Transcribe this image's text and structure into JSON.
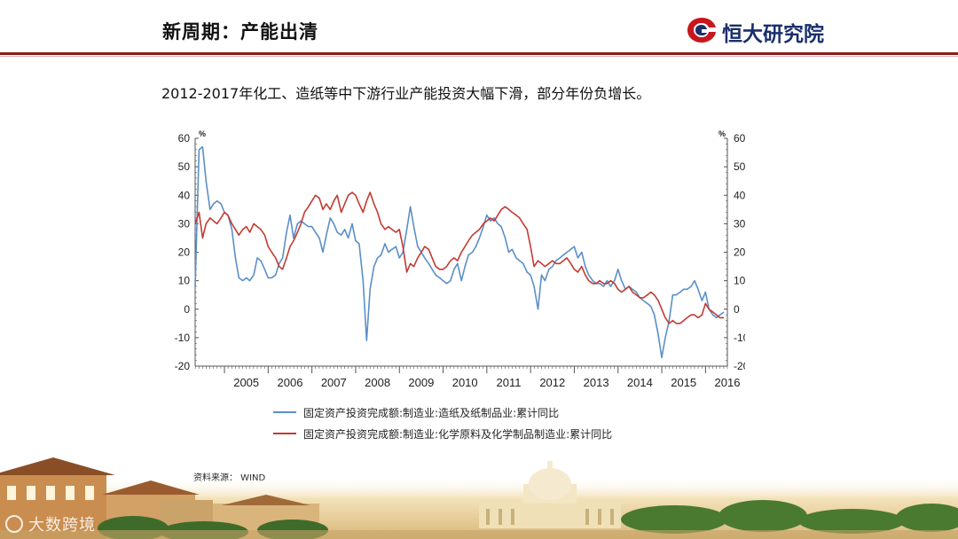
{
  "header": {
    "title": "新周期：产能出清",
    "brand": "恒大研究院"
  },
  "subtitle": "2012-2017年化工、造纸等中下游行业产能投资大幅下滑，部分年份负增长。",
  "source": "资料来源： WIND",
  "watermark": "大数跨境",
  "colors": {
    "series_blue": "#5b8fc7",
    "series_red": "#c23b32",
    "brand_red": "#8b1c1c",
    "brand_blue": "#1b2f6b"
  },
  "chart_data": {
    "type": "line",
    "y_unit_left": "%",
    "y_unit_right": "%",
    "ylim": [
      -20,
      60
    ],
    "yticks": [
      -20,
      -10,
      0,
      10,
      20,
      30,
      40,
      50,
      60
    ],
    "xlim": [
      2004.33,
      2016.5
    ],
    "xticks": [
      "2005",
      "2006",
      "2007",
      "2008",
      "2009",
      "2010",
      "2011",
      "2012",
      "2013",
      "2014",
      "2015",
      "2016"
    ],
    "grid": false,
    "legend_position": "bottom",
    "series": [
      {
        "name": "固定资产投资完成额:制造业:造纸及纸制品业:累计同比",
        "color": "#5b8fc7",
        "points": [
          [
            2004.33,
            8
          ],
          [
            2004.42,
            56
          ],
          [
            2004.5,
            57
          ],
          [
            2004.58,
            45
          ],
          [
            2004.67,
            35
          ],
          [
            2004.75,
            37
          ],
          [
            2004.83,
            38
          ],
          [
            2004.92,
            37
          ],
          [
            2005.0,
            34
          ],
          [
            2005.08,
            33
          ],
          [
            2005.17,
            28
          ],
          [
            2005.25,
            18
          ],
          [
            2005.33,
            11
          ],
          [
            2005.42,
            10
          ],
          [
            2005.5,
            11
          ],
          [
            2005.58,
            10
          ],
          [
            2005.67,
            12
          ],
          [
            2005.75,
            18
          ],
          [
            2005.83,
            17
          ],
          [
            2005.92,
            14
          ],
          [
            2006.0,
            11
          ],
          [
            2006.08,
            11
          ],
          [
            2006.17,
            12
          ],
          [
            2006.25,
            16
          ],
          [
            2006.33,
            18
          ],
          [
            2006.42,
            27
          ],
          [
            2006.5,
            33
          ],
          [
            2006.58,
            25
          ],
          [
            2006.67,
            30
          ],
          [
            2006.75,
            31
          ],
          [
            2006.83,
            30
          ],
          [
            2006.92,
            29
          ],
          [
            2007.0,
            29
          ],
          [
            2007.08,
            27
          ],
          [
            2007.17,
            25
          ],
          [
            2007.25,
            20
          ],
          [
            2007.33,
            26
          ],
          [
            2007.42,
            32
          ],
          [
            2007.5,
            30
          ],
          [
            2007.58,
            27
          ],
          [
            2007.67,
            26
          ],
          [
            2007.75,
            28
          ],
          [
            2007.83,
            25
          ],
          [
            2007.92,
            30
          ],
          [
            2008.0,
            24
          ],
          [
            2008.08,
            23
          ],
          [
            2008.17,
            10
          ],
          [
            2008.25,
            -11
          ],
          [
            2008.33,
            7
          ],
          [
            2008.42,
            15
          ],
          [
            2008.5,
            18
          ],
          [
            2008.58,
            19
          ],
          [
            2008.67,
            23
          ],
          [
            2008.75,
            20
          ],
          [
            2008.83,
            21
          ],
          [
            2008.92,
            22
          ],
          [
            2009.0,
            18
          ],
          [
            2009.08,
            20
          ],
          [
            2009.17,
            28
          ],
          [
            2009.25,
            36
          ],
          [
            2009.33,
            29
          ],
          [
            2009.42,
            22
          ],
          [
            2009.5,
            20
          ],
          [
            2009.58,
            18
          ],
          [
            2009.67,
            16
          ],
          [
            2009.75,
            14
          ],
          [
            2009.83,
            12
          ],
          [
            2009.92,
            11
          ],
          [
            2010.0,
            10
          ],
          [
            2010.08,
            9
          ],
          [
            2010.17,
            10
          ],
          [
            2010.25,
            14
          ],
          [
            2010.33,
            16
          ],
          [
            2010.42,
            10
          ],
          [
            2010.5,
            15
          ],
          [
            2010.58,
            19
          ],
          [
            2010.67,
            20
          ],
          [
            2010.75,
            22
          ],
          [
            2010.83,
            25
          ],
          [
            2010.92,
            29
          ],
          [
            2011.0,
            33
          ],
          [
            2011.08,
            31
          ],
          [
            2011.17,
            32
          ],
          [
            2011.25,
            30
          ],
          [
            2011.33,
            29
          ],
          [
            2011.42,
            25
          ],
          [
            2011.5,
            20
          ],
          [
            2011.58,
            21
          ],
          [
            2011.67,
            18
          ],
          [
            2011.75,
            17
          ],
          [
            2011.83,
            16
          ],
          [
            2011.92,
            13
          ],
          [
            2012.0,
            12
          ],
          [
            2012.08,
            8
          ],
          [
            2012.17,
            0
          ],
          [
            2012.25,
            12
          ],
          [
            2012.33,
            10
          ],
          [
            2012.42,
            14
          ],
          [
            2012.5,
            15
          ],
          [
            2012.58,
            17
          ],
          [
            2012.67,
            18
          ],
          [
            2012.75,
            19
          ],
          [
            2012.83,
            20
          ],
          [
            2012.92,
            21
          ],
          [
            2013.0,
            22
          ],
          [
            2013.08,
            18
          ],
          [
            2013.17,
            20
          ],
          [
            2013.25,
            15
          ],
          [
            2013.33,
            12
          ],
          [
            2013.42,
            10
          ],
          [
            2013.5,
            9
          ],
          [
            2013.58,
            9
          ],
          [
            2013.67,
            8
          ],
          [
            2013.75,
            10
          ],
          [
            2013.83,
            8
          ],
          [
            2013.92,
            10
          ],
          [
            2014.0,
            14
          ],
          [
            2014.08,
            10
          ],
          [
            2014.17,
            7
          ],
          [
            2014.25,
            8
          ],
          [
            2014.33,
            7
          ],
          [
            2014.42,
            6
          ],
          [
            2014.5,
            4
          ],
          [
            2014.58,
            3
          ],
          [
            2014.67,
            2
          ],
          [
            2014.75,
            1
          ],
          [
            2014.83,
            -2
          ],
          [
            2014.92,
            -9
          ],
          [
            2015.0,
            -17
          ],
          [
            2015.08,
            -10
          ],
          [
            2015.17,
            -4
          ],
          [
            2015.25,
            5
          ],
          [
            2015.33,
            5
          ],
          [
            2015.42,
            6
          ],
          [
            2015.5,
            7
          ],
          [
            2015.58,
            7
          ],
          [
            2015.67,
            8
          ],
          [
            2015.75,
            10
          ],
          [
            2015.83,
            7
          ],
          [
            2015.92,
            3
          ],
          [
            2016.0,
            6
          ],
          [
            2016.08,
            0
          ],
          [
            2016.17,
            -2
          ],
          [
            2016.25,
            -3
          ],
          [
            2016.33,
            -2
          ],
          [
            2016.42,
            -1
          ]
        ]
      },
      {
        "name": "固定资产投资完成额:制造业:化学原料及化学制品制造业:累计同比",
        "color": "#c23b32",
        "points": [
          [
            2004.33,
            30
          ],
          [
            2004.42,
            34
          ],
          [
            2004.5,
            25
          ],
          [
            2004.58,
            30
          ],
          [
            2004.67,
            32
          ],
          [
            2004.75,
            31
          ],
          [
            2004.83,
            30
          ],
          [
            2004.92,
            32
          ],
          [
            2005.0,
            34
          ],
          [
            2005.08,
            33
          ],
          [
            2005.17,
            30
          ],
          [
            2005.25,
            28
          ],
          [
            2005.33,
            26
          ],
          [
            2005.42,
            28
          ],
          [
            2005.5,
            29
          ],
          [
            2005.58,
            27
          ],
          [
            2005.67,
            30
          ],
          [
            2005.75,
            29
          ],
          [
            2005.83,
            28
          ],
          [
            2005.92,
            26
          ],
          [
            2006.0,
            22
          ],
          [
            2006.08,
            20
          ],
          [
            2006.17,
            18
          ],
          [
            2006.25,
            15
          ],
          [
            2006.33,
            14
          ],
          [
            2006.42,
            18
          ],
          [
            2006.5,
            22
          ],
          [
            2006.58,
            24
          ],
          [
            2006.67,
            27
          ],
          [
            2006.75,
            30
          ],
          [
            2006.83,
            34
          ],
          [
            2006.92,
            36
          ],
          [
            2007.0,
            38
          ],
          [
            2007.08,
            40
          ],
          [
            2007.17,
            39
          ],
          [
            2007.25,
            35
          ],
          [
            2007.33,
            37
          ],
          [
            2007.42,
            35
          ],
          [
            2007.5,
            38
          ],
          [
            2007.58,
            40
          ],
          [
            2007.67,
            34
          ],
          [
            2007.75,
            37
          ],
          [
            2007.83,
            40
          ],
          [
            2007.92,
            41
          ],
          [
            2008.0,
            40
          ],
          [
            2008.08,
            37
          ],
          [
            2008.17,
            34
          ],
          [
            2008.25,
            38
          ],
          [
            2008.33,
            41
          ],
          [
            2008.42,
            37
          ],
          [
            2008.5,
            34
          ],
          [
            2008.58,
            30
          ],
          [
            2008.67,
            28
          ],
          [
            2008.75,
            29
          ],
          [
            2008.83,
            28
          ],
          [
            2008.92,
            27
          ],
          [
            2009.0,
            28
          ],
          [
            2009.08,
            22
          ],
          [
            2009.17,
            13
          ],
          [
            2009.25,
            16
          ],
          [
            2009.33,
            15
          ],
          [
            2009.42,
            18
          ],
          [
            2009.5,
            20
          ],
          [
            2009.58,
            22
          ],
          [
            2009.67,
            21
          ],
          [
            2009.75,
            18
          ],
          [
            2009.83,
            15
          ],
          [
            2009.92,
            14
          ],
          [
            2010.0,
            14
          ],
          [
            2010.08,
            15
          ],
          [
            2010.17,
            17
          ],
          [
            2010.25,
            18
          ],
          [
            2010.33,
            17
          ],
          [
            2010.42,
            20
          ],
          [
            2010.5,
            22
          ],
          [
            2010.58,
            24
          ],
          [
            2010.67,
            26
          ],
          [
            2010.75,
            27
          ],
          [
            2010.83,
            28
          ],
          [
            2010.92,
            30
          ],
          [
            2011.0,
            31
          ],
          [
            2011.08,
            32
          ],
          [
            2011.17,
            31
          ],
          [
            2011.25,
            33
          ],
          [
            2011.33,
            35
          ],
          [
            2011.42,
            36
          ],
          [
            2011.5,
            35
          ],
          [
            2011.58,
            34
          ],
          [
            2011.67,
            33
          ],
          [
            2011.75,
            32
          ],
          [
            2011.83,
            30
          ],
          [
            2011.92,
            28
          ],
          [
            2012.0,
            22
          ],
          [
            2012.08,
            15
          ],
          [
            2012.17,
            17
          ],
          [
            2012.25,
            16
          ],
          [
            2012.33,
            15
          ],
          [
            2012.42,
            16
          ],
          [
            2012.5,
            17
          ],
          [
            2012.58,
            16
          ],
          [
            2012.67,
            16
          ],
          [
            2012.75,
            17
          ],
          [
            2012.83,
            18
          ],
          [
            2012.92,
            16
          ],
          [
            2013.0,
            14
          ],
          [
            2013.08,
            13
          ],
          [
            2013.17,
            15
          ],
          [
            2013.25,
            12
          ],
          [
            2013.33,
            10
          ],
          [
            2013.42,
            9
          ],
          [
            2013.5,
            9
          ],
          [
            2013.58,
            10
          ],
          [
            2013.67,
            9
          ],
          [
            2013.75,
            9
          ],
          [
            2013.83,
            10
          ],
          [
            2013.92,
            9
          ],
          [
            2014.0,
            7
          ],
          [
            2014.08,
            6
          ],
          [
            2014.17,
            7
          ],
          [
            2014.25,
            8
          ],
          [
            2014.33,
            6
          ],
          [
            2014.42,
            5
          ],
          [
            2014.5,
            4
          ],
          [
            2014.58,
            4
          ],
          [
            2014.67,
            5
          ],
          [
            2014.75,
            6
          ],
          [
            2014.83,
            5
          ],
          [
            2014.92,
            3
          ],
          [
            2015.0,
            0
          ],
          [
            2015.08,
            -3
          ],
          [
            2015.17,
            -5
          ],
          [
            2015.25,
            -4
          ],
          [
            2015.33,
            -5
          ],
          [
            2015.42,
            -5
          ],
          [
            2015.5,
            -4
          ],
          [
            2015.58,
            -3
          ],
          [
            2015.67,
            -2
          ],
          [
            2015.75,
            -2
          ],
          [
            2015.83,
            -3
          ],
          [
            2015.92,
            -2
          ],
          [
            2016.0,
            2
          ],
          [
            2016.08,
            0
          ],
          [
            2016.17,
            -1
          ],
          [
            2016.25,
            -2
          ],
          [
            2016.33,
            -3
          ],
          [
            2016.42,
            -3
          ]
        ]
      }
    ]
  }
}
